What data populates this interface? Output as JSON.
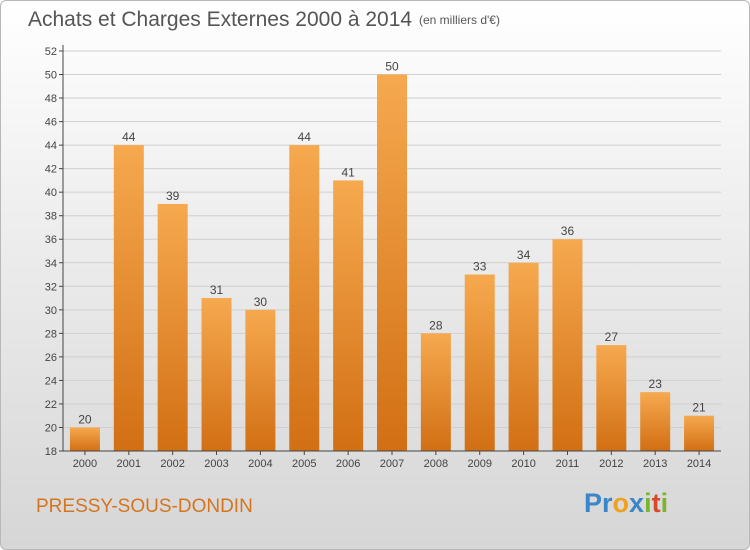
{
  "title": "Achats et Charges Externes 2000 à 2014",
  "subtitle": "(en milliers d'€)",
  "town": "PRESSY-SOUS-DONDIN",
  "logo": {
    "letters": [
      {
        "char": "P",
        "color": "#3a86c8"
      },
      {
        "char": "r",
        "color": "#3a86c8"
      },
      {
        "char": "o",
        "color": "#f0a020"
      },
      {
        "char": "x",
        "color": "#3a86c8"
      },
      {
        "char": "i",
        "color": "#7ab52c"
      },
      {
        "char": "t",
        "color": "#d94a2a"
      },
      {
        "char": "i",
        "color": "#7ab52c"
      }
    ]
  },
  "colors": {
    "bar_top": "#f6a94f",
    "bar_bottom": "#d26f14",
    "axis": "#444444",
    "grid": "#cfcfcf",
    "text": "#444444"
  },
  "chart_data": {
    "type": "bar",
    "categories": [
      "2000",
      "2001",
      "2002",
      "2003",
      "2004",
      "2005",
      "2006",
      "2007",
      "2008",
      "2009",
      "2010",
      "2011",
      "2012",
      "2013",
      "2014"
    ],
    "values": [
      20,
      44,
      39,
      31,
      30,
      44,
      41,
      50,
      28,
      33,
      34,
      36,
      27,
      23,
      21
    ],
    "ylim": [
      18,
      52
    ],
    "yticks": [
      18,
      20,
      22,
      24,
      26,
      28,
      30,
      32,
      34,
      36,
      38,
      40,
      42,
      44,
      46,
      48,
      50,
      52
    ],
    "grid": true
  }
}
